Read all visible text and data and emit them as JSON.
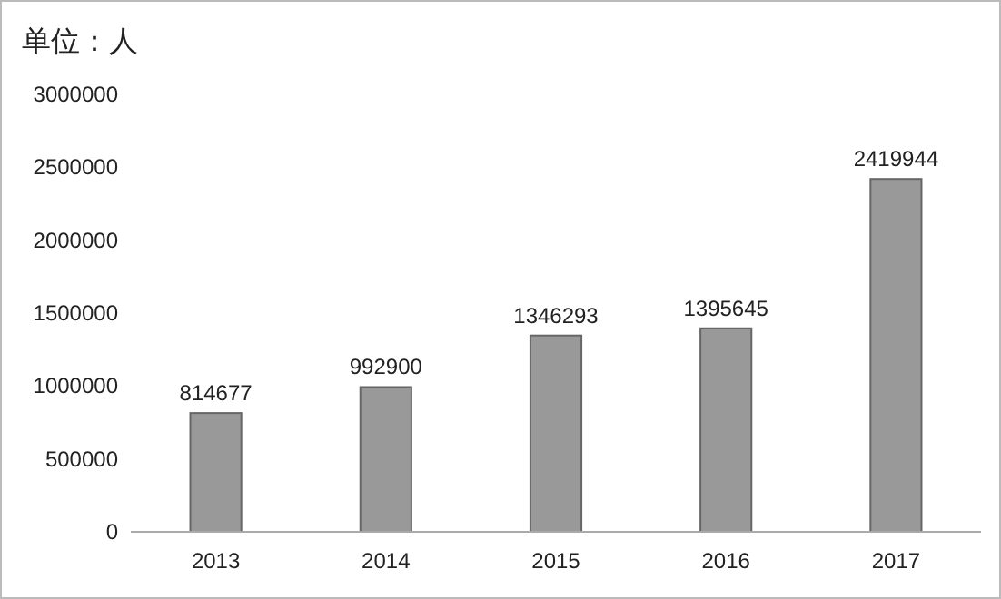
{
  "chart_data": {
    "type": "bar",
    "ylabel": "单位：人",
    "categories": [
      "2013",
      "2014",
      "2015",
      "2016",
      "2017"
    ],
    "values": [
      814677,
      992900,
      1346293,
      1395645,
      2419944
    ],
    "color": "#999999",
    "ylim": [
      0,
      3000000
    ],
    "yticks": [
      0,
      500000,
      1000000,
      1500000,
      2000000,
      2500000,
      3000000
    ],
    "data_labels": true
  }
}
